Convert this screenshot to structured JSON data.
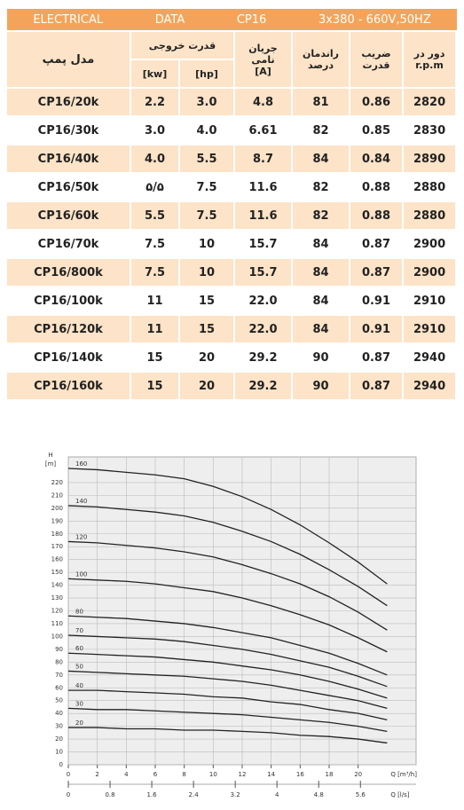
{
  "table": {
    "band": [
      "ELECTRICAL",
      "DATA",
      "CP16",
      "3x380 - 660V,50HZ"
    ],
    "header": {
      "model": "مدل پمپ",
      "power": "قدرت خروجی",
      "kw": "[kw]",
      "hp": "[hp]",
      "current": [
        "جریان",
        "نامی",
        "[A]"
      ],
      "efficiency": [
        "راندمان",
        "درصد"
      ],
      "pf": [
        "ضریب",
        "قدرت"
      ],
      "rpm": [
        "دور در",
        "r.p.m"
      ]
    },
    "rows": [
      [
        "CP16/20k",
        "2.2",
        "3.0",
        "4.8",
        "81",
        "0.86",
        "2820"
      ],
      [
        "CP16/30k",
        "3.0",
        "4.0",
        "6.61",
        "82",
        "0.85",
        "2830"
      ],
      [
        "CP16/40k",
        "4.0",
        "5.5",
        "8.7",
        "84",
        "0.84",
        "2890"
      ],
      [
        "CP16/50k",
        "۵/۵",
        "7.5",
        "11.6",
        "82",
        "0.88",
        "2880"
      ],
      [
        "CP16/60k",
        "5.5",
        "7.5",
        "11.6",
        "82",
        "0.88",
        "2880"
      ],
      [
        "CP16/70k",
        "7.5",
        "10",
        "15.7",
        "84",
        "0.87",
        "2900"
      ],
      [
        "CP16/800k",
        "7.5",
        "10",
        "15.7",
        "84",
        "0.87",
        "2900"
      ],
      [
        "CP16/100k",
        "11",
        "15",
        "22.0",
        "84",
        "0.91",
        "2910"
      ],
      [
        "CP16/120k",
        "11",
        "15",
        "22.0",
        "84",
        "0.91",
        "2910"
      ],
      [
        "CP16/140k",
        "15",
        "20",
        "29.2",
        "90",
        "0.87",
        "2940"
      ],
      [
        "CP16/160k",
        "15",
        "20",
        "29.2",
        "90",
        "0.87",
        "2940"
      ]
    ]
  },
  "chart_data": {
    "type": "line",
    "y_label": [
      "H",
      "[m]"
    ],
    "x_label": "Q [m³/h]",
    "x2_label": "Q [l/s]",
    "x": [
      0,
      2,
      4,
      6,
      8,
      10,
      12,
      14,
      16,
      18,
      20,
      22
    ],
    "xlim": [
      0,
      24
    ],
    "xticks": [
      0,
      2,
      4,
      6,
      8,
      10,
      12,
      14,
      16,
      18,
      20
    ],
    "x2lim": [
      0,
      6.667
    ],
    "x2ticks": [
      0,
      0.8,
      1.6,
      2.4,
      3.2,
      4.0,
      4.8,
      5.6
    ],
    "ylim": [
      0,
      240
    ],
    "yticks": [
      0,
      10,
      20,
      30,
      40,
      50,
      60,
      70,
      80,
      90,
      100,
      110,
      120,
      130,
      140,
      150,
      160,
      170,
      180,
      190,
      200,
      210,
      220
    ],
    "grid": true,
    "series": [
      {
        "name": "160",
        "color": "#222",
        "values": [
          231,
          230,
          228,
          226,
          223,
          217,
          209,
          199,
          187,
          173,
          158,
          141
        ]
      },
      {
        "name": "140",
        "color": "#222",
        "values": [
          202,
          201,
          199,
          197,
          194,
          189,
          182,
          174,
          164,
          152,
          139,
          124
        ]
      },
      {
        "name": "120",
        "color": "#222",
        "values": [
          174,
          173,
          171,
          169,
          166,
          162,
          156,
          149,
          141,
          131,
          119,
          105
        ]
      },
      {
        "name": "100",
        "color": "#222",
        "values": [
          145,
          144,
          143,
          141,
          138,
          135,
          130,
          124,
          117,
          109,
          99,
          88
        ]
      },
      {
        "name": "80",
        "color": "#222",
        "values": [
          116,
          115,
          114,
          112,
          110,
          107,
          103,
          99,
          93,
          87,
          79,
          70
        ]
      },
      {
        "name": "70",
        "color": "#222",
        "values": [
          101,
          100,
          99,
          98,
          96,
          93,
          90,
          86,
          81,
          76,
          69,
          61
        ]
      },
      {
        "name": "60",
        "color": "#222",
        "values": [
          87,
          86,
          85,
          84,
          82,
          80,
          77,
          74,
          70,
          65,
          59,
          52
        ]
      },
      {
        "name": "50",
        "color": "#222",
        "values": [
          73,
          72,
          71,
          70,
          69,
          67,
          65,
          62,
          58,
          54,
          50,
          44
        ]
      },
      {
        "name": "40",
        "color": "#222",
        "values": [
          58,
          58,
          57,
          56,
          55,
          53,
          52,
          49,
          47,
          43,
          40,
          35
        ]
      },
      {
        "name": "30",
        "color": "#222",
        "values": [
          44,
          43,
          43,
          42,
          41,
          40,
          39,
          37,
          35,
          33,
          30,
          26
        ]
      },
      {
        "name": "20",
        "color": "#222",
        "values": [
          29,
          29,
          28,
          28,
          27,
          27,
          26,
          25,
          23,
          22,
          20,
          17
        ]
      }
    ]
  }
}
